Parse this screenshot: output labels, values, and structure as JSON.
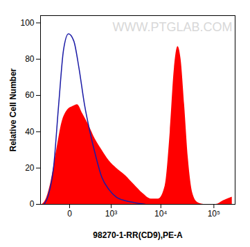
{
  "chart_data": {
    "type": "area",
    "x_label": "98270-1-RR(CD9),PE-A",
    "y_label": "Relative Cell Number",
    "watermark": "WWW.PTGLAB.COM",
    "log": "x",
    "xlim": [
      -500,
      250000
    ],
    "xticks": [
      0,
      {
        "value": 1000,
        "label": "10³"
      },
      {
        "value": 10000,
        "label": "10⁴"
      },
      {
        "value": 100000,
        "label": "10⁵"
      }
    ],
    "ylim": [
      0,
      104
    ],
    "yticks": [
      0,
      20,
      40,
      60,
      80,
      100
    ],
    "series": [
      {
        "type": "area",
        "color": "#ff0000",
        "x": [
          -450,
          -350,
          -250,
          -150,
          -80,
          -20,
          30,
          80,
          150,
          250,
          400,
          600,
          900,
          1300,
          2000,
          3000,
          4500,
          6500,
          9000,
          12000,
          15000,
          18000,
          21000,
          24000,
          28000,
          33000,
          40000,
          50000,
          70000,
          110000,
          150000,
          220000
        ],
        "values": [
          0,
          3,
          12,
          30,
          45,
          52,
          54,
          55,
          50,
          44,
          36,
          30,
          24,
          20,
          16,
          11,
          6,
          3,
          3,
          10,
          40,
          75,
          87,
          80,
          55,
          25,
          6,
          1,
          0,
          0,
          2,
          4
        ]
      },
      {
        "type": "line",
        "color": "#1a1aa6",
        "x": [
          -400,
          -300,
          -200,
          -120,
          -60,
          -10,
          40,
          100,
          180,
          280,
          400,
          600,
          900,
          1300,
          2000,
          3000,
          5000
        ],
        "values": [
          0,
          5,
          20,
          55,
          85,
          94,
          90,
          75,
          55,
          40,
          28,
          15,
          8,
          4,
          2,
          1,
          0
        ]
      }
    ]
  }
}
